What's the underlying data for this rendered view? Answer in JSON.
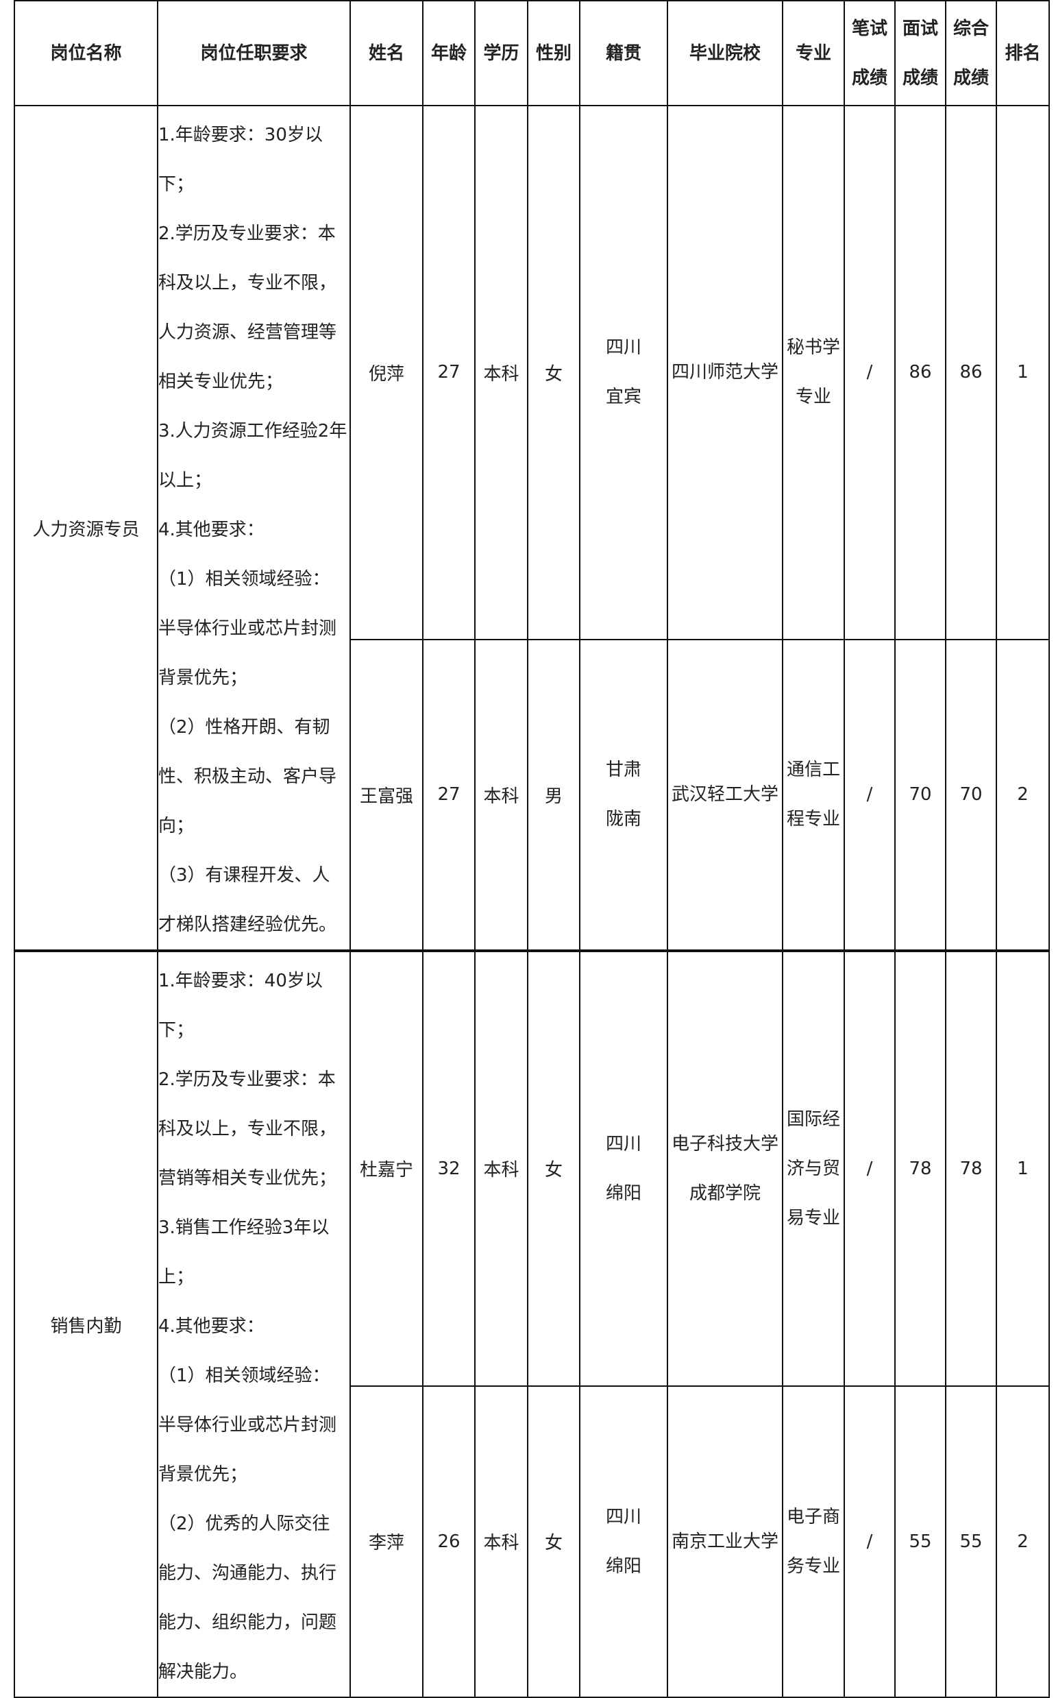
{
  "headers": [
    "岗位名称",
    "岗位任职要求",
    "姓名",
    "年龄",
    "学历",
    "性别",
    "籍贯",
    "毕业院校",
    "专业",
    "笔试成绩",
    "面试成绩",
    "综合成绩",
    "排名"
  ],
  "header_lines": {
    "written": [
      "笔试",
      "成绩"
    ],
    "interview": [
      "面试",
      "成绩"
    ],
    "total": [
      "综合",
      "成绩"
    ]
  },
  "positions": [
    {
      "name": "人力资源专员",
      "requirements": [
        "1.年龄要求：30岁以",
        "下；",
        "2.学历及专业要求：本",
        "科及以上，专业不限，",
        "人力资源、经营管理等",
        "相关专业优先；",
        "3.人力资源工作经验2年",
        "以上；",
        "4.其他要求：",
        "（1）相关领域经验：",
        "半导体行业或芯片封测",
        "背景优先；",
        "（2）性格开朗、有韧",
        "性、积极主动、客户导",
        "向；",
        "（3）有课程开发、人",
        "才梯队搭建经验优先。"
      ],
      "candidates": [
        {
          "name": "倪萍",
          "age": "27",
          "education": "本科",
          "gender": "女",
          "origin": [
            "四川",
            "宜宾"
          ],
          "school": [
            "四川师范大学"
          ],
          "major": [
            "秘书学",
            "专业"
          ],
          "written": "/",
          "interview": "86",
          "total": "86",
          "rank": "1"
        },
        {
          "name": "王富强",
          "age": "27",
          "education": "本科",
          "gender": "男",
          "origin": [
            "甘肃",
            "陇南"
          ],
          "school": [
            "武汉轻工大学"
          ],
          "major": [
            "通信工",
            "程专业"
          ],
          "written": "/",
          "interview": "70",
          "total": "70",
          "rank": "2"
        }
      ]
    },
    {
      "name": "销售内勤",
      "requirements": [
        "1.年龄要求：40岁以",
        "下；",
        "2.学历及专业要求：本",
        "科及以上，专业不限，",
        "营销等相关专业优先；",
        "3.销售工作经验3年以",
        "上；",
        "4.其他要求：",
        "（1）相关领域经验：",
        "半导体行业或芯片封测",
        "背景优先；",
        "（2）优秀的人际交往",
        "能力、沟通能力、执行",
        "能力、组织能力，问题",
        "解决能力。"
      ],
      "candidates": [
        {
          "name": "杜嘉宁",
          "age": "32",
          "education": "本科",
          "gender": "女",
          "origin": [
            "四川",
            "绵阳"
          ],
          "school": [
            "电子科技大学",
            "成都学院"
          ],
          "major": [
            "国际经",
            "济与贸",
            "易专业"
          ],
          "written": "/",
          "interview": "78",
          "total": "78",
          "rank": "1"
        },
        {
          "name": "李萍",
          "age": "26",
          "education": "本科",
          "gender": "女",
          "origin": [
            "四川",
            "绵阳"
          ],
          "school": [
            "南京工业大学"
          ],
          "major": [
            "电子商",
            "务专业"
          ],
          "written": "/",
          "interview": "55",
          "total": "55",
          "rank": "2"
        }
      ]
    }
  ]
}
